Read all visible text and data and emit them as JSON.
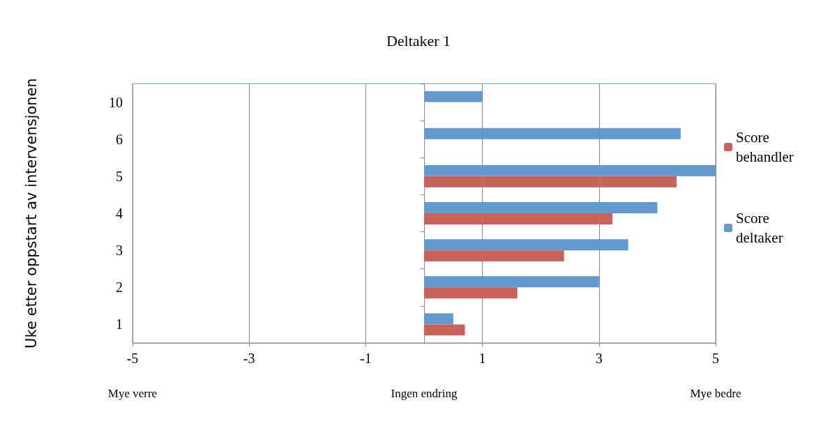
{
  "chart_data": {
    "type": "bar",
    "orientation": "horizontal",
    "title": "Deltaker 1",
    "ylabel": "Uke etter oppstart av intervensjonen",
    "categories": [
      "10",
      "6",
      "5",
      "4",
      "3",
      "2",
      "1"
    ],
    "series": [
      {
        "name": "Score behandler",
        "color": "#c9625a",
        "values": [
          null,
          null,
          4.33,
          3.23,
          2.4,
          1.6,
          0.7
        ]
      },
      {
        "name": "Score deltaker",
        "color": "#6399cd",
        "values": [
          1,
          4.4,
          5,
          4,
          3.5,
          3,
          0.5
        ]
      }
    ],
    "xlim": [
      -5,
      5
    ],
    "xticks": [
      -5,
      -3,
      -1,
      1,
      3,
      5
    ],
    "grid": "x",
    "legend": "right",
    "annotations": [
      "Mye verre",
      "Ingen endring",
      "Mye bedre"
    ]
  }
}
